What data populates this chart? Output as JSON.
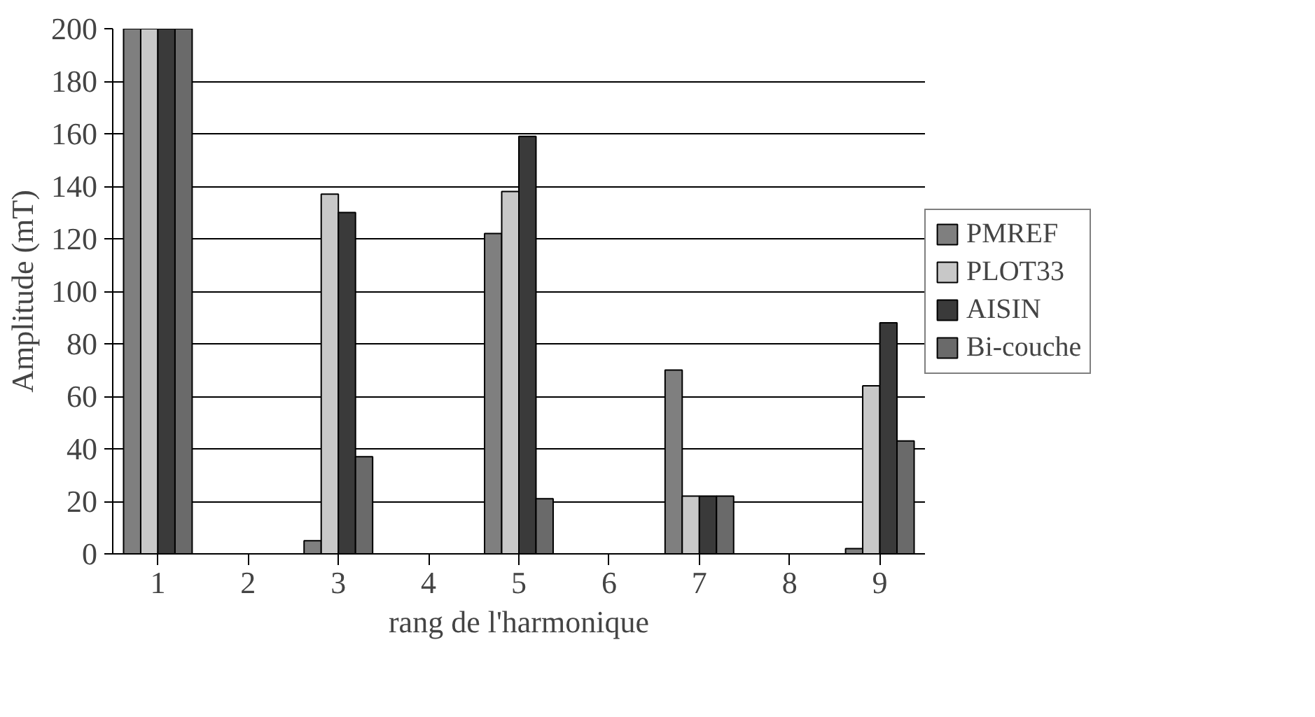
{
  "chart_data": {
    "type": "bar",
    "xlabel": "rang de l'harmonique",
    "ylabel": "Amplitude (mT)",
    "categories": [
      "1",
      "2",
      "3",
      "4",
      "5",
      "6",
      "7",
      "8",
      "9"
    ],
    "series": [
      {
        "name": "PMREF",
        "color": "#7f7f7f",
        "values": [
          200,
          null,
          5,
          null,
          122,
          null,
          70,
          null,
          2
        ]
      },
      {
        "name": "PLOT33",
        "color": "#c8c8c8",
        "values": [
          200,
          null,
          137,
          null,
          138,
          null,
          22,
          null,
          64
        ]
      },
      {
        "name": "AISIN",
        "color": "#3a3a3a",
        "values": [
          200,
          null,
          130,
          null,
          159,
          null,
          22,
          null,
          88
        ]
      },
      {
        "name": "Bi-couche",
        "color": "#6a6a6a",
        "values": [
          200,
          null,
          37,
          null,
          21,
          null,
          22,
          null,
          43
        ]
      }
    ],
    "ylim": [
      0,
      200
    ],
    "yticks": [
      0,
      20,
      40,
      60,
      80,
      100,
      120,
      140,
      160,
      180,
      200
    ],
    "grid": "y",
    "legend": "right"
  }
}
